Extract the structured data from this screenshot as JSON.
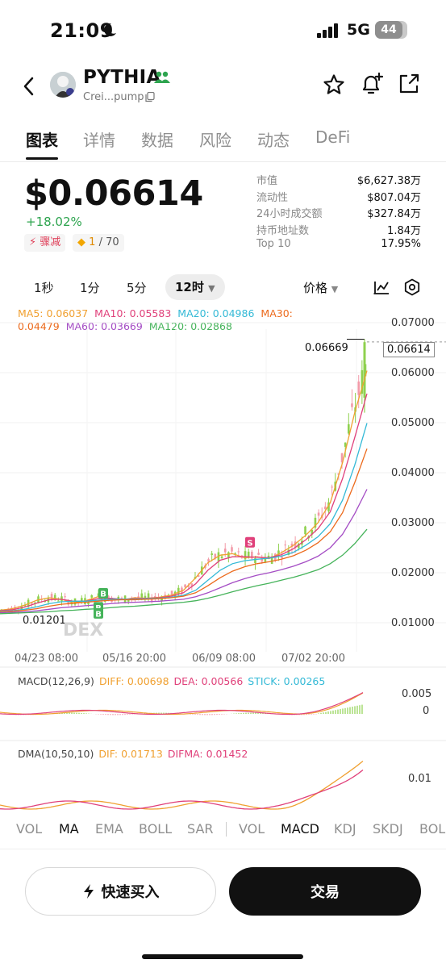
{
  "status_bar": {
    "time": "21:09",
    "network": "5G",
    "battery": "44"
  },
  "header": {
    "token_name": "PYTHIA",
    "token_address": "Crei...pump"
  },
  "tabs": [
    {
      "label": "图表",
      "active": true
    },
    {
      "label": "详情",
      "active": false
    },
    {
      "label": "数据",
      "active": false
    },
    {
      "label": "风险",
      "active": false
    },
    {
      "label": "动态",
      "active": false
    },
    {
      "label": "DeFi",
      "active": false
    }
  ],
  "price": {
    "value": "$0.06614",
    "change": "+18.02%",
    "badge_trend": "骤减",
    "badge_score_value": "1",
    "badge_score_total": "/ 70"
  },
  "stats": [
    {
      "label": "市值",
      "value": "$6,627.38万"
    },
    {
      "label": "流动性",
      "value": "$807.04万"
    },
    {
      "label": "24小时成交额",
      "value": "$327.84万"
    },
    {
      "label": "持币地址数",
      "value": "1.84万"
    },
    {
      "label": "Top 10",
      "value": "17.95%"
    }
  ],
  "intervals": {
    "items": [
      "1秒",
      "1分",
      "5分"
    ],
    "active": "12时",
    "price_toggle": "价格"
  },
  "ma_legend": [
    {
      "label": "MA5: 0.06037",
      "color": "#f0a030"
    },
    {
      "label": "MA10: 0.05583",
      "color": "#e0407a"
    },
    {
      "label": "MA20: 0.04986",
      "color": "#33b9d6"
    },
    {
      "label": "MA30: 0.04479",
      "color": "#ec6a1c"
    },
    {
      "label": "MA60: 0.03669",
      "color": "#a44cc4"
    },
    {
      "label": "MA120: 0.02868",
      "color": "#45b35a"
    }
  ],
  "chart_data": {
    "type": "line",
    "price_axis": [
      "0.07000",
      "0.06000",
      "0.05000",
      "0.04000",
      "0.03000",
      "0.02000",
      "0.01000"
    ],
    "x_labels": [
      "04/23 08:00",
      "05/16 20:00",
      "06/09 08:00",
      "07/02 20:00"
    ],
    "high_marker": "0.06669",
    "current_price": "0.06614",
    "low_marker": "0.01201",
    "watermark": "DEX",
    "trade_markers": [
      "B",
      "B",
      "B",
      "S"
    ],
    "series": [
      {
        "name": "MA5",
        "values": [
          0.0125,
          0.0128,
          0.0135,
          0.0145,
          0.015,
          0.0147,
          0.014,
          0.0144,
          0.0152,
          0.0148,
          0.0146,
          0.015,
          0.0149,
          0.0151,
          0.0155,
          0.0165,
          0.019,
          0.022,
          0.0235,
          0.0238,
          0.023,
          0.0232,
          0.0228,
          0.024,
          0.0255,
          0.0275,
          0.03,
          0.034,
          0.042,
          0.052,
          0.0604
        ]
      },
      {
        "name": "MA10",
        "values": [
          0.0124,
          0.0126,
          0.0131,
          0.0139,
          0.0146,
          0.0147,
          0.0143,
          0.0143,
          0.0148,
          0.0149,
          0.0147,
          0.0148,
          0.0149,
          0.015,
          0.0153,
          0.016,
          0.0178,
          0.0205,
          0.0225,
          0.0232,
          0.0232,
          0.0231,
          0.023,
          0.0236,
          0.0248,
          0.0266,
          0.0288,
          0.0322,
          0.0388,
          0.047,
          0.0558
        ]
      },
      {
        "name": "MA20",
        "values": [
          0.0123,
          0.0124,
          0.0127,
          0.0132,
          0.0138,
          0.0142,
          0.0143,
          0.0143,
          0.0145,
          0.0147,
          0.0147,
          0.0147,
          0.0148,
          0.0149,
          0.0151,
          0.0155,
          0.0165,
          0.0185,
          0.0205,
          0.0218,
          0.0224,
          0.0227,
          0.0229,
          0.0233,
          0.0241,
          0.0255,
          0.0272,
          0.0298,
          0.0345,
          0.0415,
          0.0499
        ]
      },
      {
        "name": "MA30",
        "values": [
          0.0122,
          0.0123,
          0.0125,
          0.0128,
          0.0133,
          0.0137,
          0.0139,
          0.0141,
          0.0143,
          0.0145,
          0.0146,
          0.0146,
          0.0147,
          0.0148,
          0.015,
          0.0153,
          0.016,
          0.0174,
          0.019,
          0.0203,
          0.0212,
          0.0218,
          0.0222,
          0.0227,
          0.0234,
          0.0245,
          0.026,
          0.0282,
          0.032,
          0.038,
          0.0448
        ]
      },
      {
        "name": "MA60",
        "values": [
          0.012,
          0.0121,
          0.0122,
          0.0124,
          0.0127,
          0.013,
          0.0132,
          0.0134,
          0.0136,
          0.0138,
          0.014,
          0.0141,
          0.0142,
          0.0143,
          0.0145,
          0.0147,
          0.0152,
          0.016,
          0.017,
          0.018,
          0.0188,
          0.0195,
          0.02,
          0.0206,
          0.0213,
          0.0222,
          0.0233,
          0.025,
          0.0277,
          0.0318,
          0.0367
        ]
      },
      {
        "name": "MA120",
        "values": [
          0.0118,
          0.0119,
          0.012,
          0.0121,
          0.0122,
          0.0124,
          0.0125,
          0.0127,
          0.0128,
          0.013,
          0.0132,
          0.0133,
          0.0135,
          0.0137,
          0.0139,
          0.0141,
          0.0144,
          0.0149,
          0.0155,
          0.0162,
          0.0168,
          0.0174,
          0.0179,
          0.0185,
          0.0191,
          0.0198,
          0.0206,
          0.0218,
          0.0235,
          0.0258,
          0.0287
        ]
      }
    ]
  },
  "macd": {
    "legend": [
      {
        "label": "MACD(12,26,9)",
        "color": "#444444"
      },
      {
        "label": "DIFF: 0.00698",
        "color": "#f0a030"
      },
      {
        "label": "DEA: 0.00566",
        "color": "#e0407a"
      },
      {
        "label": "STICK: 0.00265",
        "color": "#33b9d6"
      }
    ],
    "axis": [
      "0.005",
      "0"
    ]
  },
  "dma": {
    "legend": [
      {
        "label": "DMA(10,50,10)",
        "color": "#444444"
      },
      {
        "label": "DIF: 0.01713",
        "color": "#f0a030"
      },
      {
        "label": "DIFMA: 0.01452",
        "color": "#e0407a"
      }
    ],
    "axis": [
      "0.01"
    ]
  },
  "indicator_tabs": [
    "VOL",
    "MA",
    "EMA",
    "BOLL",
    "SAR",
    "VOL",
    "MACD",
    "KDJ",
    "SKDJ",
    "BOLL"
  ],
  "actions": {
    "quick_buy": "快速买入",
    "trade": "交易"
  }
}
